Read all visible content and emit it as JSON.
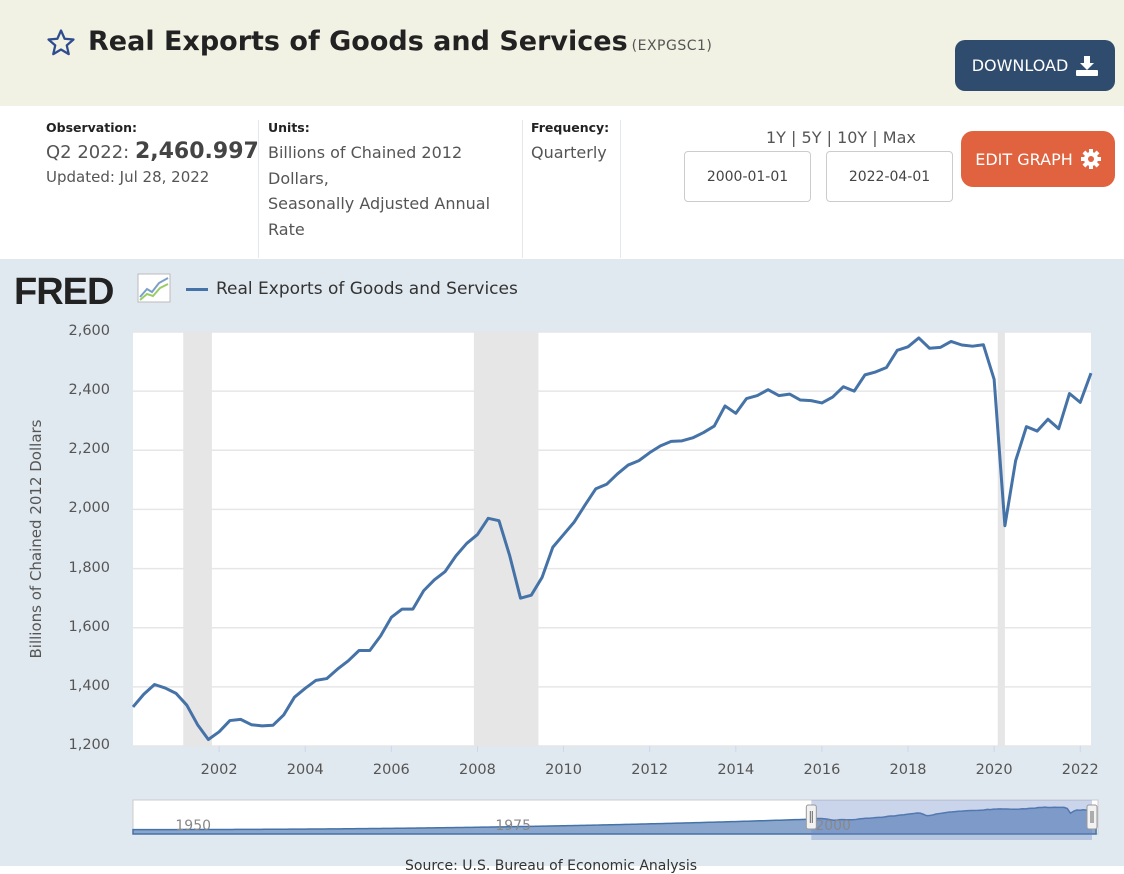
{
  "header": {
    "title": "Real Exports of Goods and Services",
    "series_id": "(EXPGSC1)",
    "download_label": "DOWNLOAD",
    "star_icon": "star-outline-icon",
    "download_icon": "download-icon"
  },
  "observation": {
    "label": "Observation:",
    "period": "Q2 2022:",
    "value": "2,460.997",
    "updated": "Updated: Jul 28, 2022"
  },
  "units": {
    "label": "Units:",
    "lines": [
      "Billions of Chained 2012",
      "Dollars,",
      "Seasonally Adjusted Annual",
      "Rate"
    ]
  },
  "frequency": {
    "label": "Frequency:",
    "value": "Quarterly"
  },
  "range_links": [
    "1Y",
    "5Y",
    "10Y",
    "Max"
  ],
  "range_sep": "|",
  "date_start": "2000-01-01",
  "date_end": "2022-04-01",
  "edit_label": "EDIT GRAPH",
  "graph": {
    "logo": "FRED",
    "legend": "Real Exports of Goods and Services",
    "source": "Source: U.S. Bureau of Economic Analysis"
  },
  "navigator": {
    "labels": [
      "1950",
      "1975",
      "2000"
    ]
  },
  "colors": {
    "line": "#4572a7",
    "recession": "#e6e6e6",
    "download": "#2f4c6e",
    "edit": "#e0623e"
  },
  "chart_data": {
    "type": "line",
    "ylabel": "Billions of Chained 2012 Dollars",
    "ylim": [
      1200,
      2600
    ],
    "yticks": [
      "1,200",
      "1,400",
      "1,600",
      "1,800",
      "2,000",
      "2,200",
      "2,400",
      "2,600"
    ],
    "xticks": [
      "2002",
      "2004",
      "2006",
      "2008",
      "2010",
      "2012",
      "2014",
      "2016",
      "2018",
      "2020",
      "2022"
    ],
    "xlim": [
      "2000-01-01",
      "2022-04-01"
    ],
    "grid": true,
    "legend": "top-left",
    "recessions": [
      [
        "2001-03",
        "2001-11"
      ],
      [
        "2007-12",
        "2009-06"
      ],
      [
        "2020-02",
        "2020-04"
      ]
    ],
    "series": [
      {
        "name": "Real Exports of Goods and Services",
        "start": "2000-Q1",
        "frequency": "quarterly",
        "values": [
          1332,
          1375,
          1408,
          1396,
          1378,
          1338,
          1272,
          1222,
          1248,
          1286,
          1290,
          1272,
          1268,
          1270,
          1305,
          1365,
          1395,
          1422,
          1428,
          1460,
          1488,
          1523,
          1523,
          1572,
          1635,
          1663,
          1663,
          1725,
          1762,
          1790,
          1843,
          1885,
          1915,
          1970,
          1962,
          1843,
          1700,
          1710,
          1770,
          1872,
          1915,
          1958,
          2015,
          2070,
          2085,
          2120,
          2150,
          2165,
          2192,
          2215,
          2230,
          2232,
          2242,
          2260,
          2282,
          2350,
          2325,
          2375,
          2385,
          2405,
          2385,
          2390,
          2370,
          2368,
          2360,
          2380,
          2415,
          2400,
          2455,
          2465,
          2480,
          2538,
          2550,
          2580,
          2545,
          2548,
          2568,
          2556,
          2552,
          2557,
          2440,
          1945,
          2165,
          2280,
          2265,
          2305,
          2273,
          2392,
          2362,
          2461
        ]
      }
    ]
  }
}
